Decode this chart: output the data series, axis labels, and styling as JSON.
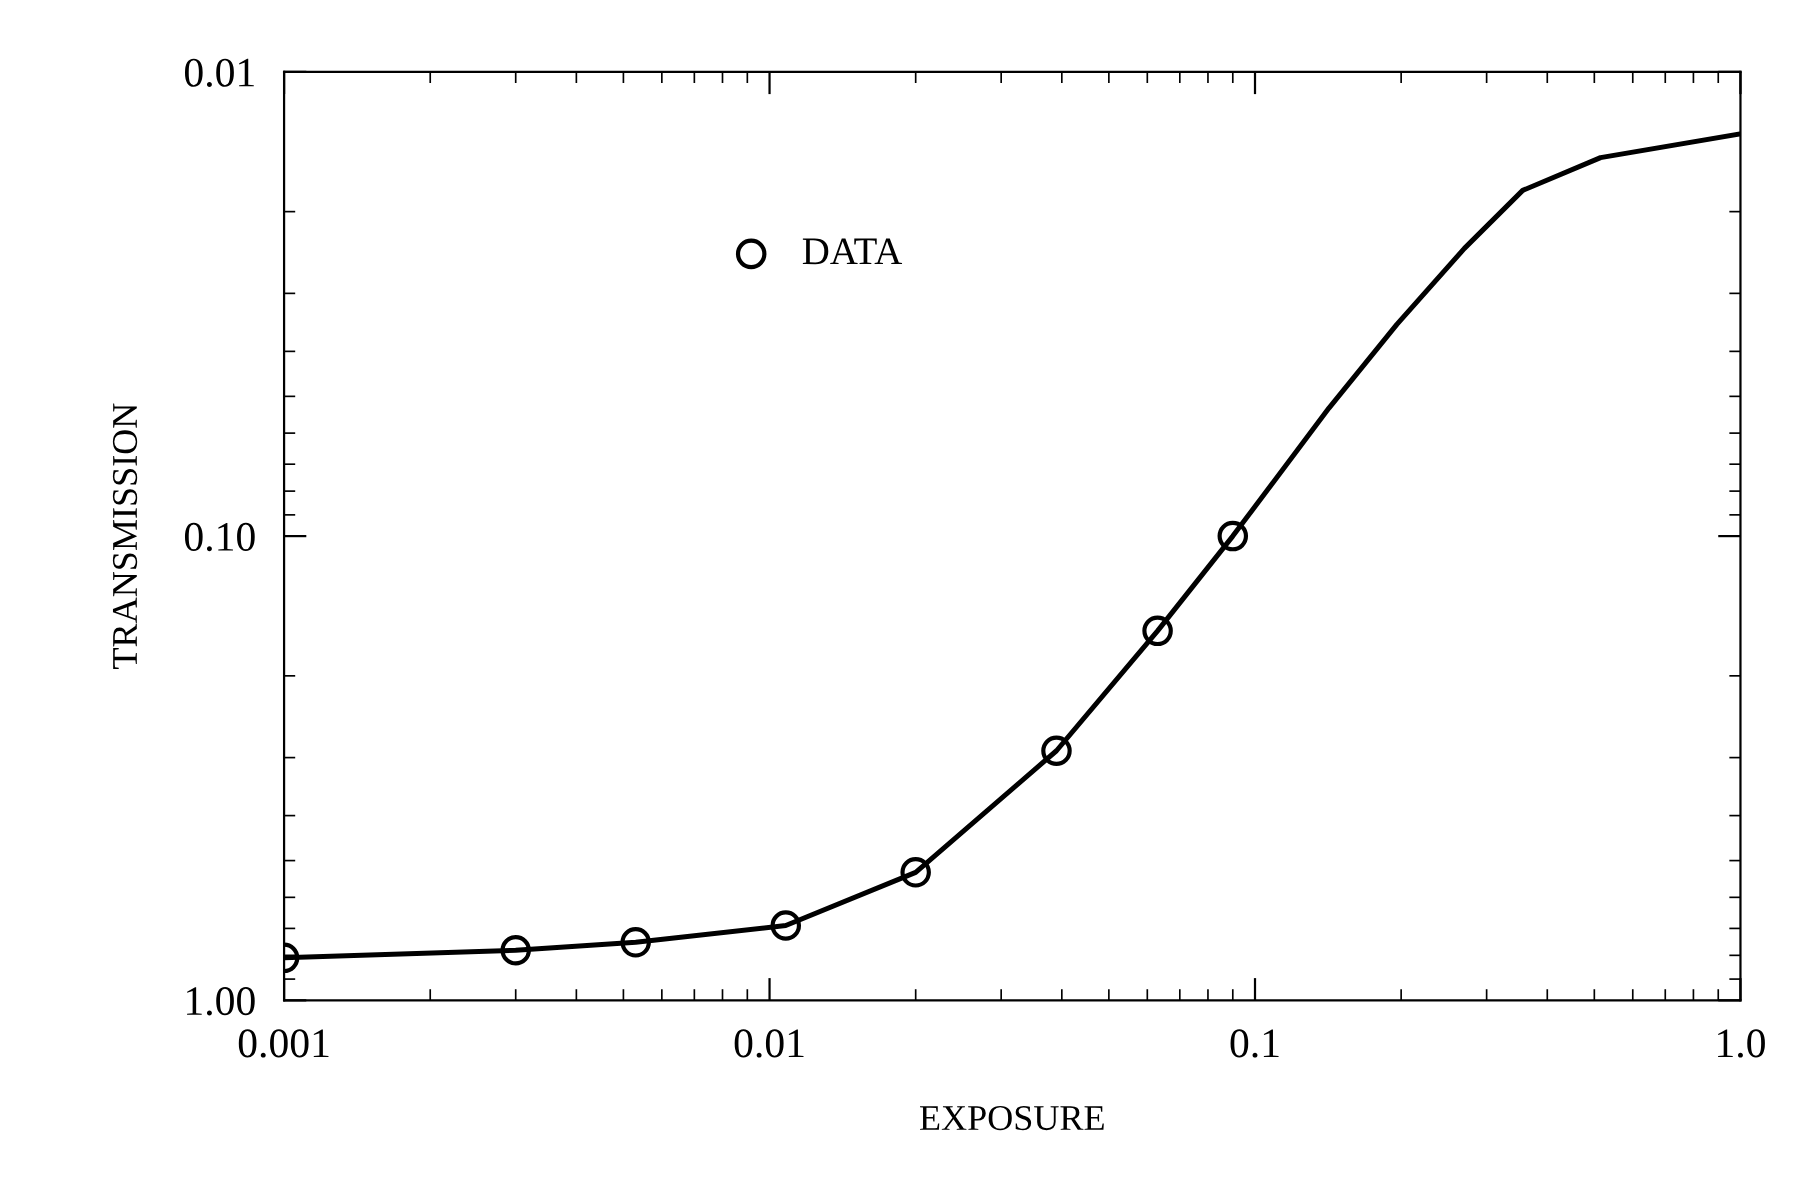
{
  "chart_data": {
    "type": "scatter",
    "xlabel": "EXPOSURE",
    "ylabel": "TRANSMISSION",
    "log": "xy",
    "xlim": [
      0.001,
      1.0
    ],
    "ylim": [
      1.0,
      0.01
    ],
    "xticks": [
      0.001,
      0.01,
      0.1,
      {
        "value": 1.0,
        "label": "1.0"
      }
    ],
    "yticks": [
      {
        "value": 1.0,
        "label": "1.00"
      },
      {
        "value": 0.1,
        "label": "0.10"
      },
      0.01
    ],
    "legend": "top left",
    "grid": false,
    "series": [
      {
        "type": "line",
        "color": "#000000",
        "line_style": "solid",
        "marker": "none",
        "x": [
          0.001,
          0.003,
          0.0053,
          0.0108,
          0.02,
          0.039,
          0.063,
          0.09,
          0.142,
          0.196,
          0.27,
          0.356,
          0.515,
          1.0
        ],
        "values": [
          0.81,
          0.78,
          0.75,
          0.69,
          0.53,
          0.29,
          0.16,
          0.1,
          0.053,
          0.035,
          0.024,
          0.018,
          0.0153,
          0.0136
        ]
      },
      {
        "name": "DATA",
        "color": "#000000",
        "marker": "circle",
        "x": [
          0.001,
          0.003,
          0.0053,
          0.0108,
          0.02,
          0.039,
          0.063,
          0.09
        ],
        "values": [
          0.81,
          0.78,
          0.75,
          0.69,
          0.53,
          0.29,
          0.16,
          0.1
        ]
      }
    ]
  }
}
